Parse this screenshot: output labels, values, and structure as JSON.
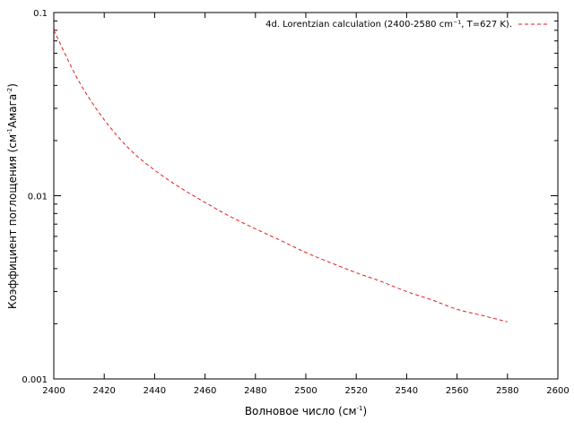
{
  "chart_data": {
    "type": "line",
    "title": "",
    "xlabel": {
      "main": "Волновое число (см",
      "sup": "-1",
      "tail": ")"
    },
    "ylabel": {
      "part1": "Коэффициент поглощения (см",
      "sup1": "-1",
      "part2": "Амага",
      "sup2": "-2",
      "part3": ")"
    },
    "xlim": [
      2400,
      2600
    ],
    "ylim": [
      0.001,
      0.1
    ],
    "yscale": "log",
    "grid": false,
    "legend_position": "top-right",
    "x_ticks": [
      2400,
      2420,
      2440,
      2460,
      2480,
      2500,
      2520,
      2540,
      2560,
      2580,
      2600
    ],
    "x_tick_labels": [
      "2400",
      "2420",
      "2440",
      "2460",
      "2480",
      "2500",
      "2520",
      "2540",
      "2560",
      "2580",
      "2600"
    ],
    "y_ticks": [
      0.001,
      0.01,
      0.1
    ],
    "y_tick_labels": [
      "0.001",
      "0.01",
      "0.1"
    ],
    "series": [
      {
        "name": "4d. Lorentzian calculation (2400-2580 cm⁻¹, T=627 K).",
        "color": "#e41a1c",
        "style": "dashed",
        "x": [
          2400,
          2410,
          2420,
          2430,
          2440,
          2450,
          2460,
          2470,
          2480,
          2490,
          2500,
          2510,
          2520,
          2530,
          2540,
          2550,
          2560,
          2570,
          2580
        ],
        "y": [
          0.08,
          0.042,
          0.026,
          0.018,
          0.0138,
          0.0111,
          0.0092,
          0.0077,
          0.0066,
          0.0057,
          0.0049,
          0.0043,
          0.0038,
          0.0034,
          0.003,
          0.0027,
          0.0024,
          0.00222,
          0.00205
        ]
      }
    ]
  }
}
